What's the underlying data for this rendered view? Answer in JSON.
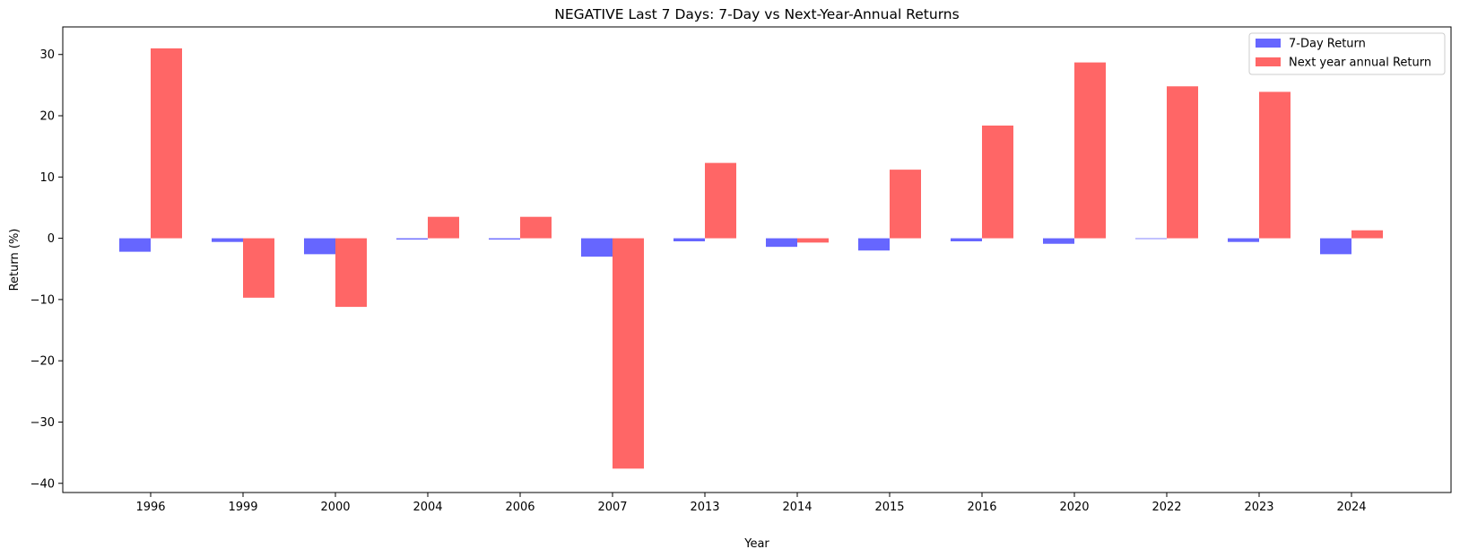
{
  "chart_data": {
    "type": "bar",
    "title": "NEGATIVE Last 7 Days: 7-Day vs Next-Year-Annual Returns",
    "xlabel": "Year",
    "ylabel": "Return (%)",
    "categories": [
      "1996",
      "1999",
      "2000",
      "2004",
      "2006",
      "2007",
      "2013",
      "2014",
      "2015",
      "2016",
      "2020",
      "2022",
      "2023",
      "2024"
    ],
    "series": [
      {
        "name": "7-Day Return",
        "color": "#6666ff",
        "values": [
          -2.2,
          -0.6,
          -2.6,
          -0.2,
          -0.2,
          -3.0,
          -0.5,
          -1.4,
          -2.0,
          -0.5,
          -0.9,
          -0.1,
          -0.6,
          -2.6
        ]
      },
      {
        "name": "Next year annual Return",
        "color": "#ff6666",
        "values": [
          31.0,
          -9.7,
          -11.2,
          3.5,
          3.5,
          -37.6,
          12.3,
          -0.7,
          11.2,
          18.4,
          28.7,
          24.8,
          23.9,
          1.3
        ]
      }
    ],
    "ylim": [
      -41.5,
      34.5
    ],
    "yticks": [
      30,
      20,
      10,
      0,
      -10,
      -20,
      -30,
      -40
    ],
    "ytick_labels": [
      "30",
      "20",
      "10",
      "0",
      "−10",
      "−20",
      "−30",
      "−40"
    ],
    "grid": false,
    "legend_position": "top-right"
  }
}
